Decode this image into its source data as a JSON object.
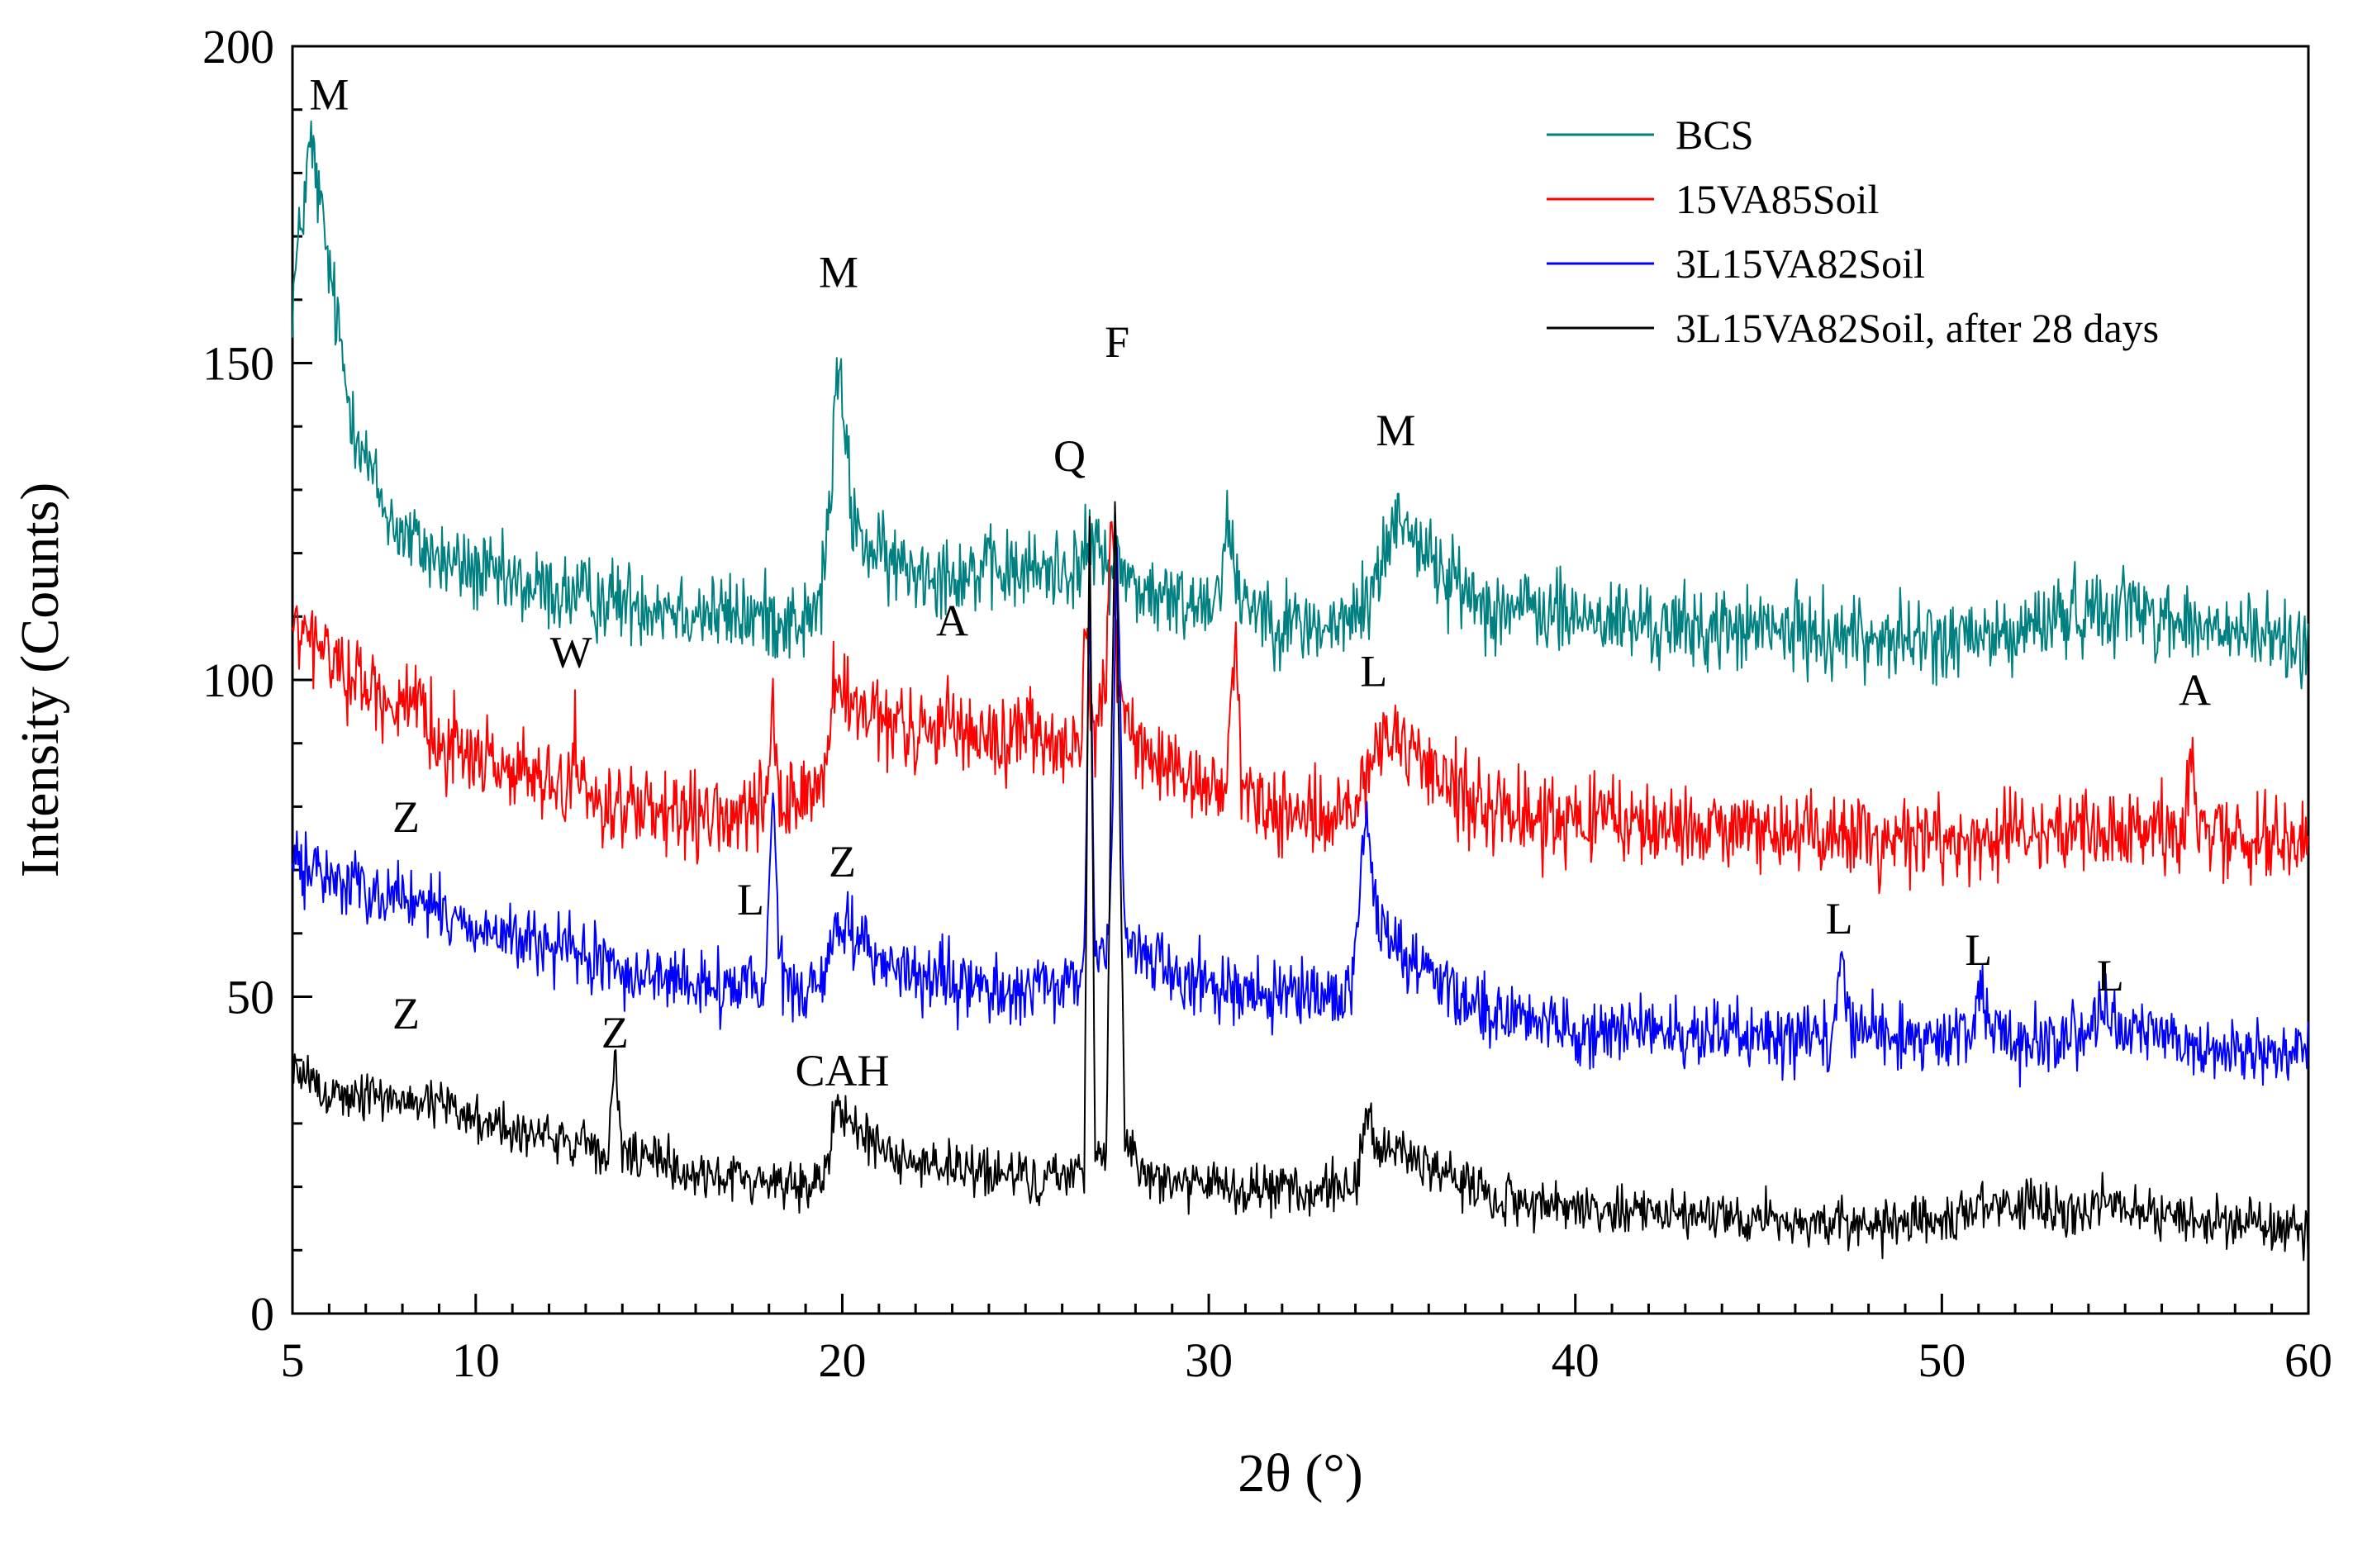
{
  "chart_data": {
    "type": "line",
    "title": "",
    "xlabel": "2θ (°)",
    "ylabel": "Intensity (Counts)",
    "xlim": [
      5,
      60
    ],
    "ylim": [
      0,
      200
    ],
    "xticks": [
      5,
      10,
      20,
      30,
      40,
      50,
      60
    ],
    "yticks": [
      0,
      50,
      100,
      150,
      200
    ],
    "grid": false,
    "legend_position": "top-right",
    "series": [
      {
        "name": "BCS",
        "color": "#008080",
        "baseline": [
          [
            5,
            160
          ],
          [
            5.5,
            185
          ],
          [
            6,
            165
          ],
          [
            6.5,
            145
          ],
          [
            7,
            135
          ],
          [
            7.5,
            127
          ],
          [
            8,
            123
          ],
          [
            9,
            119
          ],
          [
            10,
            117
          ],
          [
            11,
            115
          ],
          [
            13,
            113
          ],
          [
            15,
            112
          ],
          [
            17,
            110
          ],
          [
            18,
            110
          ],
          [
            19,
            109
          ],
          [
            19.4,
            112
          ],
          [
            19.7,
            130
          ],
          [
            19.85,
            150
          ],
          [
            20.05,
            140
          ],
          [
            20.3,
            125
          ],
          [
            20.8,
            120
          ],
          [
            21.5,
            118
          ],
          [
            23,
            117
          ],
          [
            25,
            117
          ],
          [
            26.5,
            118
          ],
          [
            26.8,
            122
          ],
          [
            27.1,
            119
          ],
          [
            27.5,
            118
          ],
          [
            28.2,
            114
          ],
          [
            29,
            112
          ],
          [
            30.2,
            113
          ],
          [
            30.5,
            125
          ],
          [
            30.8,
            114
          ],
          [
            32,
            109
          ],
          [
            33.5,
            108
          ],
          [
            34.3,
            112
          ],
          [
            34.8,
            120
          ],
          [
            35.2,
            127
          ],
          [
            35.6,
            123
          ],
          [
            36.3,
            117
          ],
          [
            37.5,
            112
          ],
          [
            40,
            110
          ],
          [
            43,
            108
          ],
          [
            45,
            108
          ],
          [
            50,
            106
          ],
          [
            52,
            107
          ],
          [
            53,
            110
          ],
          [
            55,
            112
          ],
          [
            57,
            108
          ],
          [
            60,
            106
          ]
        ],
        "noise": 5
      },
      {
        "name": "15VA85Soil",
        "color": "#ff0000",
        "baseline": [
          [
            5,
            108
          ],
          [
            6,
            104
          ],
          [
            7,
            99
          ],
          [
            8,
            96
          ],
          [
            9,
            91
          ],
          [
            10,
            88
          ],
          [
            11,
            86
          ],
          [
            12,
            83
          ],
          [
            12.6,
            82
          ],
          [
            12.7,
            98
          ],
          [
            12.8,
            82
          ],
          [
            14,
            80
          ],
          [
            15,
            78
          ],
          [
            17,
            78
          ],
          [
            17.9,
            80
          ],
          [
            18.1,
            92
          ],
          [
            18.3,
            80
          ],
          [
            19.5,
            84
          ],
          [
            19.8,
            100
          ],
          [
            20.3,
            95
          ],
          [
            21,
            93
          ],
          [
            22.5,
            91
          ],
          [
            22.9,
            96
          ],
          [
            23.3,
            92
          ],
          [
            24.5,
            90
          ],
          [
            25,
            93
          ],
          [
            26,
            88
          ],
          [
            26.5,
            90
          ],
          [
            26.65,
            110
          ],
          [
            26.8,
            90
          ],
          [
            27.2,
            100
          ],
          [
            27.35,
            130
          ],
          [
            27.5,
            100
          ],
          [
            28,
            90
          ],
          [
            29,
            84
          ],
          [
            30.5,
            83
          ],
          [
            30.7,
            108
          ],
          [
            30.9,
            84
          ],
          [
            31.5,
            80
          ],
          [
            33,
            78
          ],
          [
            34,
            79
          ],
          [
            34.3,
            84
          ],
          [
            34.6,
            91
          ],
          [
            35.2,
            88
          ],
          [
            36,
            86
          ],
          [
            38,
            79
          ],
          [
            40,
            78
          ],
          [
            45,
            76
          ],
          [
            50,
            75
          ],
          [
            55,
            76
          ],
          [
            56.6,
            76
          ],
          [
            56.8,
            92
          ],
          [
            57,
            76
          ],
          [
            60,
            74
          ]
        ],
        "noise": 5
      },
      {
        "name": "3L15VA82Soil",
        "color": "#0000ff",
        "baseline": [
          [
            5,
            71
          ],
          [
            6,
            69
          ],
          [
            7,
            67
          ],
          [
            8,
            66
          ],
          [
            9,
            63
          ],
          [
            10,
            61
          ],
          [
            11,
            59
          ],
          [
            12,
            58
          ],
          [
            13,
            56
          ],
          [
            14,
            54
          ],
          [
            15,
            53
          ],
          [
            16,
            52
          ],
          [
            17,
            51
          ],
          [
            17.9,
            52
          ],
          [
            18.1,
            80
          ],
          [
            18.3,
            54
          ],
          [
            19,
            50
          ],
          [
            19.5,
            52
          ],
          [
            19.8,
            62
          ],
          [
            20.2,
            61
          ],
          [
            21,
            56
          ],
          [
            22,
            53
          ],
          [
            23,
            52
          ],
          [
            24,
            51
          ],
          [
            26,
            51
          ],
          [
            26.6,
            54
          ],
          [
            26.75,
            115
          ],
          [
            26.9,
            55
          ],
          [
            27.3,
            60
          ],
          [
            27.5,
            125
          ],
          [
            27.7,
            60
          ],
          [
            28.3,
            56
          ],
          [
            29.5,
            53
          ],
          [
            31,
            51
          ],
          [
            33,
            49
          ],
          [
            33.9,
            51
          ],
          [
            34.3,
            80
          ],
          [
            34.6,
            62
          ],
          [
            35.3,
            57
          ],
          [
            36.5,
            52
          ],
          [
            38,
            47
          ],
          [
            40,
            45
          ],
          [
            43,
            44
          ],
          [
            47,
            44
          ],
          [
            47.25,
            56
          ],
          [
            47.5,
            46
          ],
          [
            49,
            43
          ],
          [
            50.8,
            44
          ],
          [
            51,
            52
          ],
          [
            51.3,
            46
          ],
          [
            52,
            42
          ],
          [
            54,
            44
          ],
          [
            54.5,
            48
          ],
          [
            55,
            45
          ],
          [
            57,
            42
          ],
          [
            60,
            41
          ]
        ],
        "noise": 4
      },
      {
        "name": "3L15VA82Soil, after 28 days",
        "color": "#000000",
        "baseline": [
          [
            5,
            38
          ],
          [
            6,
            35
          ],
          [
            7,
            34
          ],
          [
            8,
            34
          ],
          [
            9,
            33
          ],
          [
            10,
            31
          ],
          [
            11,
            29
          ],
          [
            12,
            28
          ],
          [
            13,
            26
          ],
          [
            13.6,
            25
          ],
          [
            13.8,
            40
          ],
          [
            14,
            25
          ],
          [
            15,
            24
          ],
          [
            16,
            22
          ],
          [
            18,
            21
          ],
          [
            19,
            20
          ],
          [
            19.5,
            22
          ],
          [
            19.8,
            32
          ],
          [
            20.3,
            30
          ],
          [
            21,
            26
          ],
          [
            22,
            24
          ],
          [
            24,
            22
          ],
          [
            26,
            21
          ],
          [
            26.6,
            24
          ],
          [
            26.75,
            128
          ],
          [
            26.9,
            25
          ],
          [
            27.2,
            26
          ],
          [
            27.45,
            132
          ],
          [
            27.7,
            28
          ],
          [
            28.3,
            22
          ],
          [
            30,
            20
          ],
          [
            32,
            19
          ],
          [
            34,
            20
          ],
          [
            34.3,
            32
          ],
          [
            34.6,
            25
          ],
          [
            35.3,
            26
          ],
          [
            36,
            23
          ],
          [
            38,
            18
          ],
          [
            40,
            17
          ],
          [
            45,
            15
          ],
          [
            47.2,
            14
          ],
          [
            50,
            14
          ],
          [
            51,
            17
          ],
          [
            53.5,
            16
          ],
          [
            54.5,
            18
          ],
          [
            56,
            15
          ],
          [
            60,
            14
          ]
        ],
        "noise": 3
      }
    ],
    "annotations": [
      {
        "text": "M",
        "x": 6.0,
        "y": 190
      },
      {
        "text": "M",
        "x": 19.9,
        "y": 162
      },
      {
        "text": "M",
        "x": 35.1,
        "y": 137
      },
      {
        "text": "W",
        "x": 12.6,
        "y": 102
      },
      {
        "text": "A",
        "x": 23.0,
        "y": 107
      },
      {
        "text": "Q",
        "x": 26.2,
        "y": 133
      },
      {
        "text": "F",
        "x": 27.5,
        "y": 151
      },
      {
        "text": "L",
        "x": 34.5,
        "y": 99
      },
      {
        "text": "A",
        "x": 56.9,
        "y": 96
      },
      {
        "text": "Z",
        "x": 8.1,
        "y": 76
      },
      {
        "text": "L",
        "x": 17.5,
        "y": 63
      },
      {
        "text": "Z",
        "x": 20.0,
        "y": 69
      },
      {
        "text": "L",
        "x": 47.2,
        "y": 60
      },
      {
        "text": "L",
        "x": 51.0,
        "y": 55
      },
      {
        "text": "L",
        "x": 54.6,
        "y": 51
      },
      {
        "text": "Z",
        "x": 8.1,
        "y": 45
      },
      {
        "text": "Z",
        "x": 13.8,
        "y": 42
      },
      {
        "text": "CAH",
        "x": 20.0,
        "y": 36
      }
    ]
  }
}
